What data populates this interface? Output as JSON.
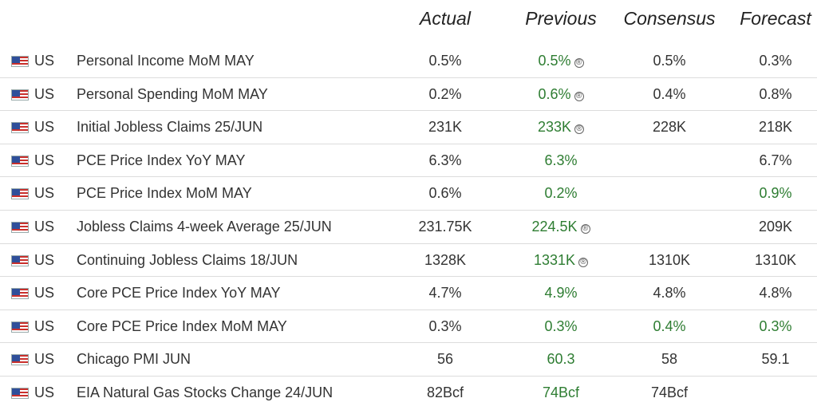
{
  "columns": {
    "actual": "Actual",
    "previous": "Previous",
    "consensus": "Consensus",
    "forecast": "Forecast"
  },
  "colors": {
    "better": "#2e7d32",
    "text": "#333333",
    "divider": "#dcdcdc"
  },
  "revised_mark": "®",
  "rows": [
    {
      "country": "US",
      "event": "Personal Income MoM MAY",
      "actual": "0.5%",
      "previous": "0.5%",
      "previous_revised": true,
      "consensus": "0.5%",
      "forecast": "0.3%"
    },
    {
      "country": "US",
      "event": "Personal Spending MoM MAY",
      "actual": "0.2%",
      "previous": "0.6%",
      "previous_revised": true,
      "consensus": "0.4%",
      "forecast": "0.8%"
    },
    {
      "country": "US",
      "event": "Initial Jobless Claims 25/JUN",
      "actual": "231K",
      "previous": "233K",
      "previous_revised": true,
      "consensus": "228K",
      "forecast": "218K"
    },
    {
      "country": "US",
      "event": "PCE Price Index YoY MAY",
      "actual": "6.3%",
      "previous": "6.3%",
      "previous_revised": false,
      "consensus": "",
      "forecast": "6.7%"
    },
    {
      "country": "US",
      "event": "PCE Price Index MoM MAY",
      "actual": "0.6%",
      "previous": "0.2%",
      "previous_revised": false,
      "consensus": "",
      "forecast": "0.9%",
      "forecast_green": true
    },
    {
      "country": "US",
      "event": "Jobless Claims 4-week Average 25/JUN",
      "actual": "231.75K",
      "previous": "224.5K",
      "previous_revised": true,
      "consensus": "",
      "forecast": "209K"
    },
    {
      "country": "US",
      "event": "Continuing Jobless Claims 18/JUN",
      "actual": "1328K",
      "previous": "1331K",
      "previous_revised": true,
      "consensus": "1310K",
      "forecast": "1310K"
    },
    {
      "country": "US",
      "event": "Core PCE Price Index YoY MAY",
      "actual": "4.7%",
      "previous": "4.9%",
      "previous_revised": false,
      "consensus": "4.8%",
      "forecast": "4.8%"
    },
    {
      "country": "US",
      "event": "Core PCE Price Index MoM MAY",
      "actual": "0.3%",
      "previous": "0.3%",
      "previous_revised": false,
      "consensus": "0.4%",
      "consensus_green": true,
      "forecast": "0.3%",
      "forecast_green": true
    },
    {
      "country": "US",
      "event": "Chicago PMI JUN",
      "actual": "56",
      "previous": "60.3",
      "previous_revised": false,
      "consensus": "58",
      "forecast": "59.1"
    },
    {
      "country": "US",
      "event": "EIA Natural Gas Stocks Change 24/JUN",
      "actual": "82Bcf",
      "previous": "74Bcf",
      "previous_revised": false,
      "consensus": "74Bcf",
      "forecast": ""
    }
  ]
}
